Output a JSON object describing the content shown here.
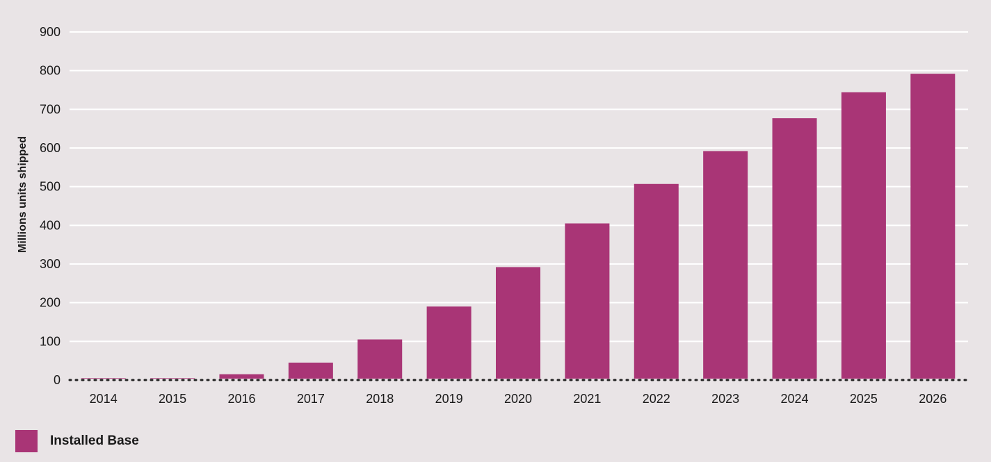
{
  "chart_data": {
    "type": "bar",
    "categories": [
      "2014",
      "2015",
      "2016",
      "2017",
      "2018",
      "2019",
      "2020",
      "2021",
      "2022",
      "2023",
      "2024",
      "2025",
      "2026"
    ],
    "series": [
      {
        "name": "Installed Base",
        "values": [
          5,
          5,
          15,
          45,
          105,
          190,
          292,
          405,
          507,
          592,
          677,
          744,
          792
        ]
      }
    ],
    "ylabel": "Millions units shipped",
    "xlabel": "",
    "ylim": [
      0,
      900
    ],
    "yticks": [
      "0",
      "100",
      "200",
      "300",
      "400",
      "500",
      "600",
      "700",
      "800",
      "900"
    ],
    "grid": true,
    "legend_position": "bottom-left",
    "colors": {
      "bar": "#a93576",
      "grid": "#ffffff",
      "baseline": "#222222",
      "background": "#e9e4e6"
    }
  }
}
